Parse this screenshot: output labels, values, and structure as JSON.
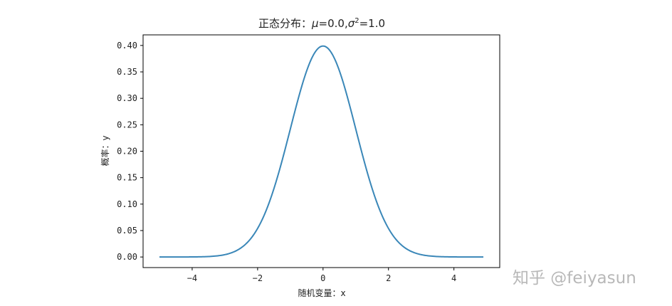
{
  "chart_data": {
    "type": "line",
    "title_prefix": "正态分布：",
    "title_mu": "μ",
    "title_mu_value": "=0.0,",
    "title_sigma": "σ",
    "title_sigma_exp": "2",
    "title_sigma_value": "=1.0",
    "xlabel": "随机变量：x",
    "ylabel": "概率：y",
    "xlim": [
      -5.5,
      5.4
    ],
    "ylim": [
      -0.02,
      0.42
    ],
    "x_ticks": [
      -4,
      -2,
      0,
      2,
      4
    ],
    "x_tick_labels": [
      "−4",
      "−2",
      "0",
      "2",
      "4"
    ],
    "y_ticks": [
      0.0,
      0.05,
      0.1,
      0.15,
      0.2,
      0.25,
      0.3,
      0.35,
      0.4
    ],
    "y_tick_labels": [
      "0.00",
      "0.05",
      "0.10",
      "0.15",
      "0.20",
      "0.25",
      "0.30",
      "0.35",
      "0.40"
    ],
    "grid": false,
    "mu": 0.0,
    "sigma2": 1.0,
    "x_range": [
      -5.0,
      4.9
    ],
    "line_color": "#3a87b8"
  },
  "watermark": "知乎 @feiyasun"
}
